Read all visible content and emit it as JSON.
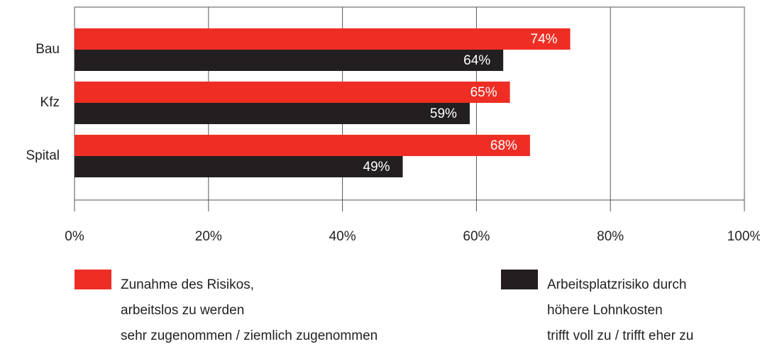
{
  "chart_data": {
    "type": "hbar",
    "categories": [
      "Bau",
      "Kfz",
      "Spital"
    ],
    "series": [
      {
        "name": "Zunahme des Risikos,\narbeitslos zu werden\nsehr zugenommen / ziemlich zugenommen",
        "color": "#ee2e24",
        "values": [
          74,
          65,
          68
        ],
        "value_labels": [
          "74%",
          "65%",
          "68%"
        ]
      },
      {
        "name": "Arbeitsplatzrisiko durch\nhöhere Lohnkosten\ntrifft voll zu / trifft eher zu",
        "color": "#231f20",
        "values": [
          64,
          59,
          49
        ],
        "value_labels": [
          "64%",
          "59%",
          "49%"
        ]
      }
    ],
    "xlim": [
      0,
      100
    ],
    "xticks": [
      {
        "value": 0,
        "label": "0%"
      },
      {
        "value": 20,
        "label": "20%"
      },
      {
        "value": 40,
        "label": "40%"
      },
      {
        "value": 60,
        "label": "60%"
      },
      {
        "value": 80,
        "label": "80%"
      },
      {
        "value": 100,
        "label": "100%"
      }
    ],
    "grid": true
  }
}
